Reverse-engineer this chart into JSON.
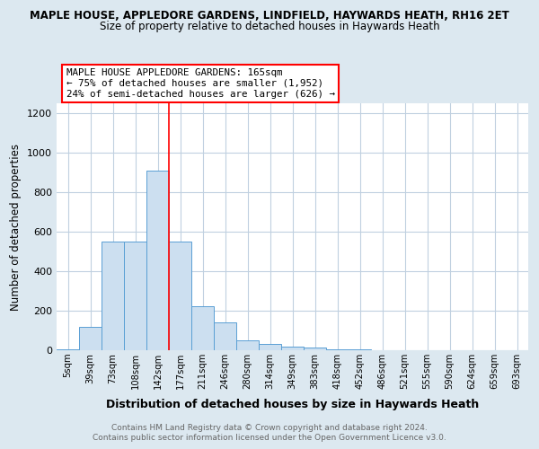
{
  "title1": "MAPLE HOUSE, APPLEDORE GARDENS, LINDFIELD, HAYWARDS HEATH, RH16 2ET",
  "title2": "Size of property relative to detached houses in Haywards Heath",
  "xlabel": "Distribution of detached houses by size in Haywards Heath",
  "ylabel": "Number of detached properties",
  "footer1": "Contains HM Land Registry data © Crown copyright and database right 2024.",
  "footer2": "Contains public sector information licensed under the Open Government Licence v3.0.",
  "bin_labels": [
    "5sqm",
    "39sqm",
    "73sqm",
    "108sqm",
    "142sqm",
    "177sqm",
    "211sqm",
    "246sqm",
    "280sqm",
    "314sqm",
    "349sqm",
    "383sqm",
    "418sqm",
    "452sqm",
    "486sqm",
    "521sqm",
    "555sqm",
    "590sqm",
    "624sqm",
    "659sqm",
    "693sqm"
  ],
  "bar_heights": [
    5,
    120,
    550,
    550,
    910,
    550,
    225,
    140,
    52,
    32,
    18,
    12,
    5,
    5,
    2,
    1,
    0,
    0,
    0,
    0,
    0
  ],
  "bar_color": "#ccdff0",
  "bar_edge_color": "#5a9fd4",
  "red_line_x": 4.5,
  "annotation_text": "MAPLE HOUSE APPLEDORE GARDENS: 165sqm\n← 75% of detached houses are smaller (1,952)\n24% of semi-detached houses are larger (626) →",
  "annotation_box_color": "white",
  "annotation_box_edge_color": "red",
  "ylim": [
    0,
    1250
  ],
  "yticks": [
    0,
    200,
    400,
    600,
    800,
    1000,
    1200
  ],
  "background_color": "#dce8f0",
  "plot_bg_color": "white",
  "grid_color": "#c0d0e0"
}
